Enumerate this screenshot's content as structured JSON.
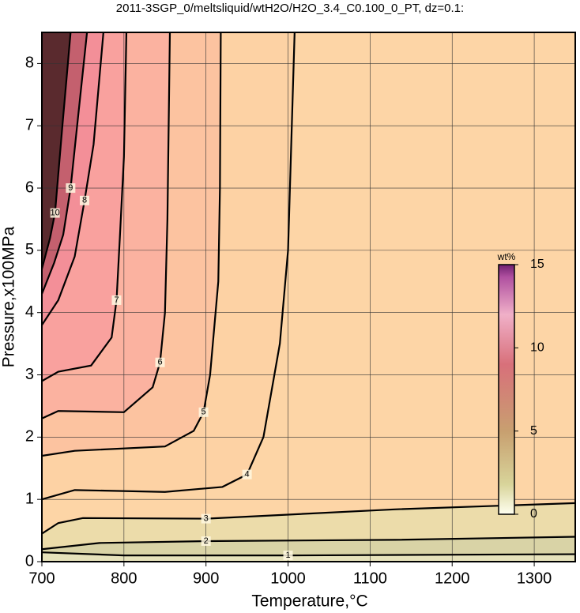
{
  "chart_data": {
    "type": "contour",
    "title": "2011-3SGP_0/meltsliquid/wtH2O/H2O_3.4_C0.100_0_PT, dz=0.1:",
    "x_label": "Temperature,°C",
    "y_label": "Pressure,x100MPa",
    "xlim": [
      700,
      1350
    ],
    "ylim": [
      0,
      8.5
    ],
    "xticks": [
      700,
      800,
      900,
      1000,
      1100,
      1200,
      1300
    ],
    "yticks": [
      0,
      1,
      2,
      3,
      4,
      5,
      6,
      7,
      8
    ],
    "grid": true,
    "contours": [
      {
        "level": 1,
        "color": "#d9d3a6",
        "x": [
          700,
          800,
          1000,
          1350
        ],
        "y": [
          0.15,
          0.1,
          0.1,
          0.12
        ]
      },
      {
        "level": 2,
        "color": "#ecdcaa",
        "x": [
          700,
          770,
          900,
          1130,
          1350
        ],
        "y": [
          0.2,
          0.3,
          0.33,
          0.35,
          0.4
        ]
      },
      {
        "level": 3,
        "color": "#fdd5a6",
        "x": [
          700,
          720,
          750,
          900,
          1130,
          1350
        ],
        "y": [
          0.45,
          0.62,
          0.7,
          0.69,
          0.84,
          0.94
        ]
      },
      {
        "level": 4,
        "color": "#fdd2a4",
        "x": [
          700,
          740,
          850,
          920,
          950,
          970,
          990,
          1000,
          1008
        ],
        "y": [
          1.0,
          1.15,
          1.12,
          1.2,
          1.4,
          2.0,
          3.5,
          5.0,
          8.5
        ]
      },
      {
        "level": 5,
        "color": "#fcc3a0",
        "x": [
          700,
          740,
          850,
          885,
          897,
          905,
          915,
          917,
          918
        ],
        "y": [
          1.7,
          1.78,
          1.85,
          2.1,
          2.4,
          3.0,
          4.5,
          6.0,
          8.5
        ]
      },
      {
        "level": 6,
        "color": "#fbb2a0",
        "x": [
          700,
          720,
          800,
          835,
          844,
          850,
          853,
          856
        ],
        "y": [
          2.3,
          2.42,
          2.4,
          2.8,
          3.2,
          4.0,
          5.5,
          8.5
        ]
      },
      {
        "level": 7,
        "color": "#f9a19e",
        "x": [
          700,
          720,
          760,
          785,
          791,
          795,
          800,
          803
        ],
        "y": [
          2.9,
          3.05,
          3.15,
          3.6,
          4.2,
          5.2,
          6.5,
          8.5
        ]
      },
      {
        "level": 8,
        "color": "#f38f98",
        "x": [
          700,
          720,
          740,
          752,
          763,
          775
        ],
        "y": [
          3.8,
          4.2,
          4.9,
          5.8,
          6.7,
          8.5
        ]
      },
      {
        "level": 9,
        "color": "#c4606e",
        "x": [
          700,
          715,
          726,
          735,
          742,
          755
        ],
        "y": [
          4.3,
          4.8,
          5.25,
          6.0,
          6.88,
          8.5
        ]
      },
      {
        "level": 10,
        "color": "#5a2a2e",
        "x": [
          700,
          710,
          716,
          725,
          735
        ],
        "y": [
          4.7,
          5.2,
          5.6,
          7.0,
          8.5
        ]
      }
    ],
    "colorbar": {
      "label": "wt%",
      "lim": [
        0,
        15
      ],
      "ticks": [
        0,
        5,
        10,
        15
      ]
    }
  }
}
